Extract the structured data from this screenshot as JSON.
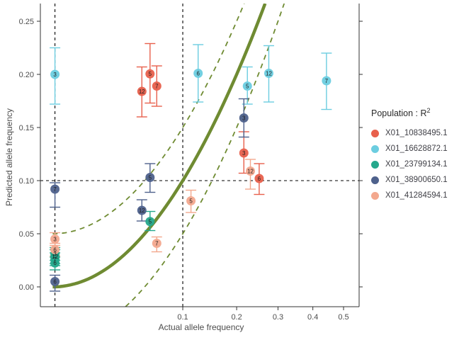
{
  "chart_data": {
    "type": "scatter",
    "title": "",
    "xlabel": "Actual allele frequency",
    "ylabel": "Predicted allele frequency",
    "x_scale": "sqrt",
    "y_scale": "linear",
    "x_ticks": [
      0.1,
      0.2,
      0.3,
      0.4,
      0.5
    ],
    "x_tick_labels": [
      "0.1",
      "0.2",
      "0.3",
      "0.4",
      "0.5"
    ],
    "y_ticks": [
      0,
      0.05,
      0.1,
      0.15,
      0.2,
      0.25
    ],
    "y_tick_labels": [
      "0.00",
      "0.05",
      "0.10",
      "0.15",
      "0.20",
      "0.25"
    ],
    "xlim": [
      0,
      0.555
    ],
    "ylim": [
      -0.019,
      0.267
    ],
    "grid": false,
    "reference_lines": {
      "horizontal": [
        0.1
      ],
      "vertical": [
        3e-05,
        0.1
      ],
      "color": "#000000",
      "style": "dashed"
    },
    "fit_curves": {
      "color": "#6f8b32",
      "identity": {
        "equation": "y = x",
        "style": "solid",
        "offset": 0
      },
      "band_upper": {
        "equation": "y = x + 0.05",
        "style": "dashed",
        "offset": 0.05
      },
      "band_lower": {
        "equation": "y = x - 0.05",
        "style": "dashed",
        "offset": -0.05
      }
    },
    "legend": {
      "title": "Population : R",
      "title_superscript": "2",
      "position": "right"
    },
    "series": [
      {
        "name": "X01_10838495.1",
        "color": "#e8604c",
        "points": [
          {
            "label": "12",
            "x": 0.047,
            "y": 0.184,
            "ymin": 0.16,
            "ymax": 0.207
          },
          {
            "label": "5",
            "x": 0.056,
            "y": 0.2005,
            "ymin": 0.173,
            "ymax": 0.229
          },
          {
            "label": "7",
            "x": 0.064,
            "y": 0.189,
            "ymin": 0.17,
            "ymax": 0.208
          },
          {
            "label": "3",
            "x": 0.216,
            "y": 0.126,
            "ymin": 0.107,
            "ymax": 0.146
          },
          {
            "label": "6",
            "x": 0.252,
            "y": 0.102,
            "ymin": 0.087,
            "ymax": 0.116
          }
        ]
      },
      {
        "name": "X01_16628872.1",
        "color": "#6ccde0",
        "points": [
          {
            "label": "3",
            "x": 3e-05,
            "y": 0.2,
            "ymin": 0.172,
            "ymax": 0.225
          },
          {
            "label": "6",
            "x": 0.125,
            "y": 0.201,
            "ymin": 0.174,
            "ymax": 0.228
          },
          {
            "label": "5",
            "x": 0.224,
            "y": 0.189,
            "ymin": 0.172,
            "ymax": 0.207
          },
          {
            "label": "12",
            "x": 0.276,
            "y": 0.201,
            "ymin": 0.174,
            "ymax": 0.227
          },
          {
            "label": "7",
            "x": 0.443,
            "y": 0.194,
            "ymin": 0.167,
            "ymax": 0.22
          }
        ]
      },
      {
        "name": "X01_23799134.1",
        "color": "#25a88c",
        "points": [
          {
            "label": "3",
            "x": 3e-05,
            "y": 0.031,
            "ymin": 0.025,
            "ymax": 0.037
          },
          {
            "label": "12",
            "x": 3e-05,
            "y": 0.0285,
            "ymin": 0.022,
            "ymax": 0.035
          },
          {
            "label": "7",
            "x": 3e-05,
            "y": 0.026,
            "ymin": 0.02,
            "ymax": 0.032
          },
          {
            "label": "6",
            "x": 3e-05,
            "y": 0.0225,
            "ymin": 0.016,
            "ymax": 0.028
          },
          {
            "label": "5",
            "x": 0.056,
            "y": 0.0615,
            "ymin": 0.053,
            "ymax": 0.071
          }
        ]
      },
      {
        "name": "X01_38900650.1",
        "color": "#4e618c",
        "points": [
          {
            "label": "7",
            "x": 3e-05,
            "y": 0.092,
            "ymin": 0.075,
            "ymax": 0.098
          },
          {
            "label": "6",
            "x": 3e-05,
            "y": 0.005,
            "ymin": -0.004,
            "ymax": 0.011
          },
          {
            "label": "12",
            "x": 0.047,
            "y": 0.072,
            "ymin": 0.062,
            "ymax": 0.082
          },
          {
            "label": "5",
            "x": 0.056,
            "y": 0.103,
            "ymin": 0.089,
            "ymax": 0.116
          },
          {
            "label": "3",
            "x": 0.216,
            "y": 0.159,
            "ymin": 0.141,
            "ymax": 0.177
          }
        ]
      },
      {
        "name": "X01_41284594.1",
        "color": "#f3a88e",
        "points": [
          {
            "label": "3",
            "x": 3e-05,
            "y": 0.045,
            "ymin": 0.039,
            "ymax": 0.051
          },
          {
            "label": "6",
            "x": 3e-05,
            "y": 0.035,
            "ymin": 0.029,
            "ymax": 0.041
          },
          {
            "label": "7",
            "x": 0.064,
            "y": 0.041,
            "ymin": 0.033,
            "ymax": 0.047
          },
          {
            "label": "5",
            "x": 0.113,
            "y": 0.081,
            "ymin": 0.07,
            "ymax": 0.091
          },
          {
            "label": "12",
            "x": 0.231,
            "y": 0.109,
            "ymin": 0.092,
            "ymax": 0.12
          }
        ]
      }
    ]
  }
}
